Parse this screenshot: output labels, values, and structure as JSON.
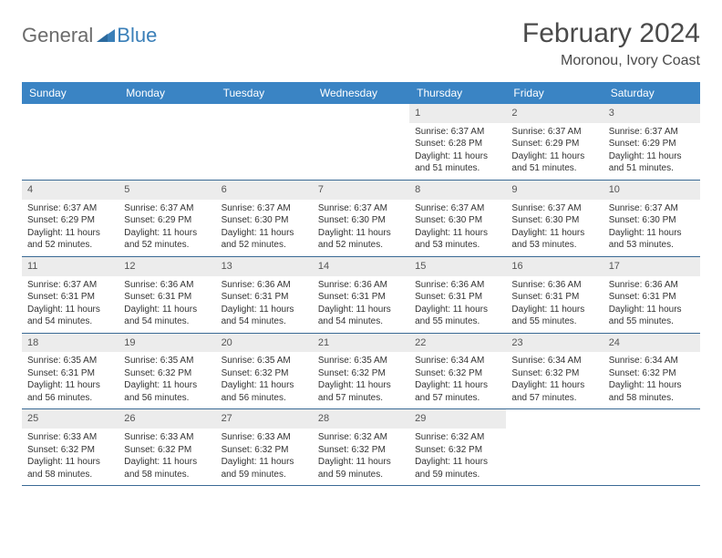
{
  "brand": {
    "part1": "General",
    "part2": "Blue",
    "accent": "#3a7fb8",
    "gray": "#6b6b6b"
  },
  "title": "February 2024",
  "location": "Moronou, Ivory Coast",
  "colors": {
    "header_bg": "#3a84c4",
    "header_text": "#ffffff",
    "daynum_bg": "#ececec",
    "week_border": "#3a6a95",
    "body_text": "#333333",
    "page_bg": "#ffffff"
  },
  "fonts": {
    "month_title_size": 30,
    "location_size": 16,
    "day_header_size": 12,
    "cell_size": 10
  },
  "day_names": [
    "Sunday",
    "Monday",
    "Tuesday",
    "Wednesday",
    "Thursday",
    "Friday",
    "Saturday"
  ],
  "weeks": [
    [
      {
        "n": "",
        "sr": "",
        "ss": "",
        "dl": ""
      },
      {
        "n": "",
        "sr": "",
        "ss": "",
        "dl": ""
      },
      {
        "n": "",
        "sr": "",
        "ss": "",
        "dl": ""
      },
      {
        "n": "",
        "sr": "",
        "ss": "",
        "dl": ""
      },
      {
        "n": "1",
        "sr": "Sunrise: 6:37 AM",
        "ss": "Sunset: 6:28 PM",
        "dl": "Daylight: 11 hours and 51 minutes."
      },
      {
        "n": "2",
        "sr": "Sunrise: 6:37 AM",
        "ss": "Sunset: 6:29 PM",
        "dl": "Daylight: 11 hours and 51 minutes."
      },
      {
        "n": "3",
        "sr": "Sunrise: 6:37 AM",
        "ss": "Sunset: 6:29 PM",
        "dl": "Daylight: 11 hours and 51 minutes."
      }
    ],
    [
      {
        "n": "4",
        "sr": "Sunrise: 6:37 AM",
        "ss": "Sunset: 6:29 PM",
        "dl": "Daylight: 11 hours and 52 minutes."
      },
      {
        "n": "5",
        "sr": "Sunrise: 6:37 AM",
        "ss": "Sunset: 6:29 PM",
        "dl": "Daylight: 11 hours and 52 minutes."
      },
      {
        "n": "6",
        "sr": "Sunrise: 6:37 AM",
        "ss": "Sunset: 6:30 PM",
        "dl": "Daylight: 11 hours and 52 minutes."
      },
      {
        "n": "7",
        "sr": "Sunrise: 6:37 AM",
        "ss": "Sunset: 6:30 PM",
        "dl": "Daylight: 11 hours and 52 minutes."
      },
      {
        "n": "8",
        "sr": "Sunrise: 6:37 AM",
        "ss": "Sunset: 6:30 PM",
        "dl": "Daylight: 11 hours and 53 minutes."
      },
      {
        "n": "9",
        "sr": "Sunrise: 6:37 AM",
        "ss": "Sunset: 6:30 PM",
        "dl": "Daylight: 11 hours and 53 minutes."
      },
      {
        "n": "10",
        "sr": "Sunrise: 6:37 AM",
        "ss": "Sunset: 6:30 PM",
        "dl": "Daylight: 11 hours and 53 minutes."
      }
    ],
    [
      {
        "n": "11",
        "sr": "Sunrise: 6:37 AM",
        "ss": "Sunset: 6:31 PM",
        "dl": "Daylight: 11 hours and 54 minutes."
      },
      {
        "n": "12",
        "sr": "Sunrise: 6:36 AM",
        "ss": "Sunset: 6:31 PM",
        "dl": "Daylight: 11 hours and 54 minutes."
      },
      {
        "n": "13",
        "sr": "Sunrise: 6:36 AM",
        "ss": "Sunset: 6:31 PM",
        "dl": "Daylight: 11 hours and 54 minutes."
      },
      {
        "n": "14",
        "sr": "Sunrise: 6:36 AM",
        "ss": "Sunset: 6:31 PM",
        "dl": "Daylight: 11 hours and 54 minutes."
      },
      {
        "n": "15",
        "sr": "Sunrise: 6:36 AM",
        "ss": "Sunset: 6:31 PM",
        "dl": "Daylight: 11 hours and 55 minutes."
      },
      {
        "n": "16",
        "sr": "Sunrise: 6:36 AM",
        "ss": "Sunset: 6:31 PM",
        "dl": "Daylight: 11 hours and 55 minutes."
      },
      {
        "n": "17",
        "sr": "Sunrise: 6:36 AM",
        "ss": "Sunset: 6:31 PM",
        "dl": "Daylight: 11 hours and 55 minutes."
      }
    ],
    [
      {
        "n": "18",
        "sr": "Sunrise: 6:35 AM",
        "ss": "Sunset: 6:31 PM",
        "dl": "Daylight: 11 hours and 56 minutes."
      },
      {
        "n": "19",
        "sr": "Sunrise: 6:35 AM",
        "ss": "Sunset: 6:32 PM",
        "dl": "Daylight: 11 hours and 56 minutes."
      },
      {
        "n": "20",
        "sr": "Sunrise: 6:35 AM",
        "ss": "Sunset: 6:32 PM",
        "dl": "Daylight: 11 hours and 56 minutes."
      },
      {
        "n": "21",
        "sr": "Sunrise: 6:35 AM",
        "ss": "Sunset: 6:32 PM",
        "dl": "Daylight: 11 hours and 57 minutes."
      },
      {
        "n": "22",
        "sr": "Sunrise: 6:34 AM",
        "ss": "Sunset: 6:32 PM",
        "dl": "Daylight: 11 hours and 57 minutes."
      },
      {
        "n": "23",
        "sr": "Sunrise: 6:34 AM",
        "ss": "Sunset: 6:32 PM",
        "dl": "Daylight: 11 hours and 57 minutes."
      },
      {
        "n": "24",
        "sr": "Sunrise: 6:34 AM",
        "ss": "Sunset: 6:32 PM",
        "dl": "Daylight: 11 hours and 58 minutes."
      }
    ],
    [
      {
        "n": "25",
        "sr": "Sunrise: 6:33 AM",
        "ss": "Sunset: 6:32 PM",
        "dl": "Daylight: 11 hours and 58 minutes."
      },
      {
        "n": "26",
        "sr": "Sunrise: 6:33 AM",
        "ss": "Sunset: 6:32 PM",
        "dl": "Daylight: 11 hours and 58 minutes."
      },
      {
        "n": "27",
        "sr": "Sunrise: 6:33 AM",
        "ss": "Sunset: 6:32 PM",
        "dl": "Daylight: 11 hours and 59 minutes."
      },
      {
        "n": "28",
        "sr": "Sunrise: 6:32 AM",
        "ss": "Sunset: 6:32 PM",
        "dl": "Daylight: 11 hours and 59 minutes."
      },
      {
        "n": "29",
        "sr": "Sunrise: 6:32 AM",
        "ss": "Sunset: 6:32 PM",
        "dl": "Daylight: 11 hours and 59 minutes."
      },
      {
        "n": "",
        "sr": "",
        "ss": "",
        "dl": ""
      },
      {
        "n": "",
        "sr": "",
        "ss": "",
        "dl": ""
      }
    ]
  ]
}
